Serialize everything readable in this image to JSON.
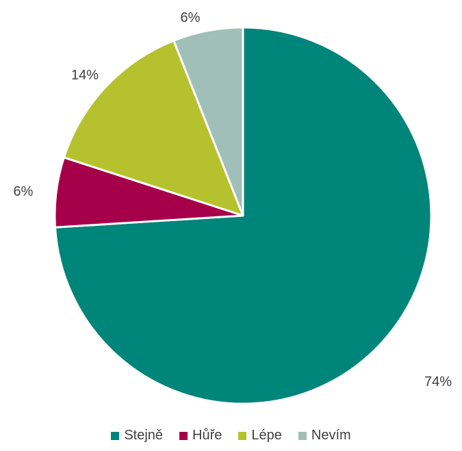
{
  "chart_data": {
    "type": "pie",
    "title": "",
    "categories": [
      "Stejně",
      "Hůře",
      "Lépe",
      "Nevím"
    ],
    "values": [
      74,
      6,
      14,
      6
    ],
    "data_labels": [
      "74%",
      "6%",
      "14%",
      "6%"
    ],
    "colors": [
      "#00857A",
      "#A6004B",
      "#B5C22D",
      "#9FBFB8"
    ],
    "legend_position": "bottom",
    "start": "12 o'clock",
    "direction": "clockwise"
  }
}
